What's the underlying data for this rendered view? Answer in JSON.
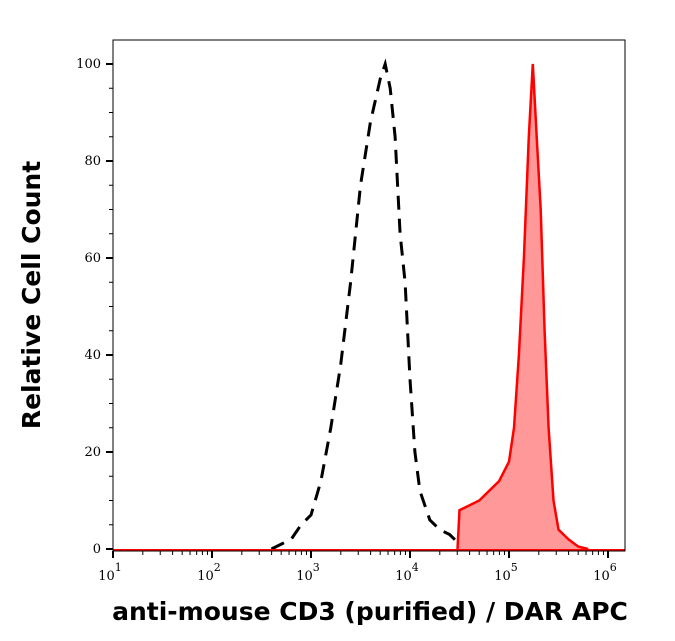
{
  "chart_data": {
    "type": "area",
    "title": "",
    "xlabel": "anti-mouse CD3 (purified) / DAR APC",
    "ylabel": "Relative Cell Count",
    "xscale": "log",
    "xlim": [
      10,
      1500000
    ],
    "ylim": [
      0,
      105
    ],
    "xticks": [
      {
        "base": "10",
        "exp": "1",
        "value": 10
      },
      {
        "base": "10",
        "exp": "2",
        "value": 100
      },
      {
        "base": "10",
        "exp": "3",
        "value": 1000
      },
      {
        "base": "10",
        "exp": "4",
        "value": 10000
      },
      {
        "base": "10",
        "exp": "5",
        "value": 100000
      },
      {
        "base": "10",
        "exp": "6",
        "value": 1000000
      }
    ],
    "yticks": [
      "0",
      "20",
      "40",
      "60",
      "80",
      "100"
    ],
    "grid": false,
    "series": [
      {
        "style": "dashed line, no fill",
        "color": "#000000",
        "x": [
          398,
          501,
          631,
          794,
          1000,
          1259,
          1585,
          1995,
          2512,
          3162,
          3981,
          5012,
          5623,
          6310,
          7079,
          7943,
          8913,
          10000,
          11220,
          12589,
          15849,
          19953,
          25119,
          31623,
          39811
        ],
        "y": [
          0,
          1,
          2,
          5,
          7,
          14,
          25,
          38,
          55,
          75,
          88,
          97,
          100,
          95,
          85,
          65,
          55,
          35,
          20,
          12,
          6,
          4,
          3,
          1,
          0
        ]
      },
      {
        "style": "solid line, filled",
        "color": "#ff0000",
        "fill": "#ff9999",
        "x": [
          30200,
          31623,
          39811,
          50119,
          63096,
          79433,
          100000,
          112202,
          125893,
          141254,
          158489,
          173780,
          190546,
          208930,
          229087,
          251189,
          281838,
          316228,
          398107,
          501187,
          630957
        ],
        "y": [
          0,
          8,
          9,
          10,
          12,
          14,
          18,
          25,
          40,
          60,
          85,
          100,
          85,
          70,
          45,
          25,
          10,
          4,
          2,
          0.5,
          0
        ]
      }
    ]
  }
}
